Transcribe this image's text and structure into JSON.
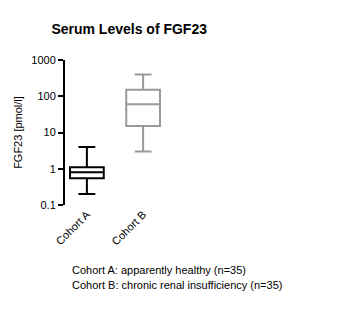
{
  "chart_data": {
    "type": "box",
    "title": "Serum Levels of FGF23",
    "y_label": "FGF23 [pmol/l]",
    "categories": [
      "Cohort A",
      "Cohort B"
    ],
    "stats": [
      {
        "min": 0.2,
        "q1": 0.55,
        "median": 0.8,
        "q3": 1.1,
        "max": 4
      },
      {
        "min": 3,
        "q1": 15,
        "median": 60,
        "q3": 150,
        "max": 400
      }
    ],
    "colors": [
      "#000000",
      "#999999"
    ],
    "log": "y",
    "ylim": [
      0.1,
      1000
    ],
    "yticks": [
      0.1,
      1,
      10,
      100,
      1000
    ],
    "grid": false,
    "annotations": [
      "Cohort A: apparently healthy (n=35)",
      "Cohort B: chronic renal insufficiency (n=35)"
    ]
  }
}
